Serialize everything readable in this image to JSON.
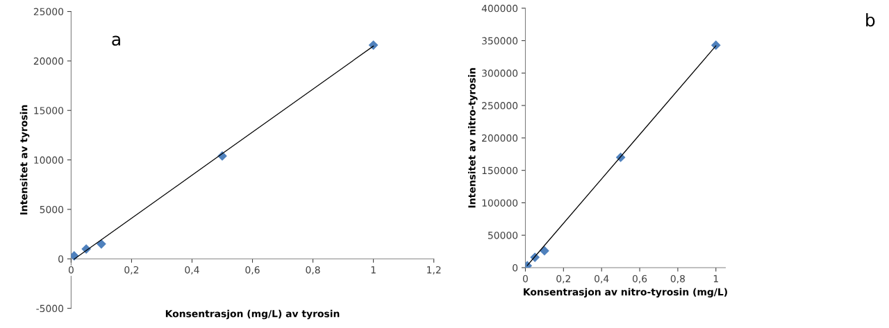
{
  "chart_data": [
    {
      "type": "scatter",
      "annotations": [
        "a"
      ],
      "xlabel": "Konsentrasjon (mg/L) av tyrosin",
      "ylabel": "Intensitet av tyrosin",
      "marker": "diamond",
      "grid": false,
      "legend": false,
      "x": [
        0.01,
        0.05,
        0.1,
        0.5,
        1
      ],
      "series": [
        {
          "color": "#4f81bd",
          "values": [
            300,
            1000,
            1500,
            10400,
            21600
          ]
        },
        {
          "type": "line",
          "color": "#000000",
          "marker": "none",
          "values": [
            -30,
            840,
            1930,
            10630,
            21500
          ]
        }
      ],
      "xlim": [
        0,
        1.2
      ],
      "xticks": [
        0,
        {
          "value": 0.2,
          "label": "0,2"
        },
        {
          "value": 0.4,
          "label": "0,4"
        },
        {
          "value": 0.6,
          "label": "0,6"
        },
        {
          "value": 0.8,
          "label": "0,8"
        },
        1,
        {
          "value": 1.2,
          "label": "1,2"
        }
      ],
      "ylim": [
        -5000,
        25000
      ],
      "yticks": [
        -5000,
        0,
        5000,
        10000,
        15000,
        20000,
        25000
      ]
    },
    {
      "type": "scatter",
      "annotations": [
        "b"
      ],
      "xlabel": "Konsentrasjon av nitro-tyrosin (mg/L)",
      "ylabel": "Intensitet av nitro-tyrosin",
      "marker": "diamond",
      "grid": false,
      "legend": false,
      "x": [
        0.01,
        0.05,
        0.1,
        0.5,
        1
      ],
      "series": [
        {
          "color": "#4f81bd",
          "values": [
            3000,
            16000,
            26000,
            170000,
            343000
          ]
        },
        {
          "type": "line",
          "color": "#000000",
          "marker": "none",
          "values": [
            3400,
            17100,
            34200,
            171000,
            342000
          ]
        }
      ],
      "xlim": [
        0,
        1.05
      ],
      "xticks": [
        0,
        {
          "value": 0.2,
          "label": "0,2"
        },
        {
          "value": 0.4,
          "label": "0,4"
        },
        {
          "value": 0.6,
          "label": "0,6"
        },
        {
          "value": 0.8,
          "label": "0,8"
        },
        1
      ],
      "ylim": [
        0,
        400000
      ],
      "yticks": [
        0,
        50000,
        100000,
        150000,
        200000,
        250000,
        300000,
        350000,
        400000
      ]
    }
  ]
}
